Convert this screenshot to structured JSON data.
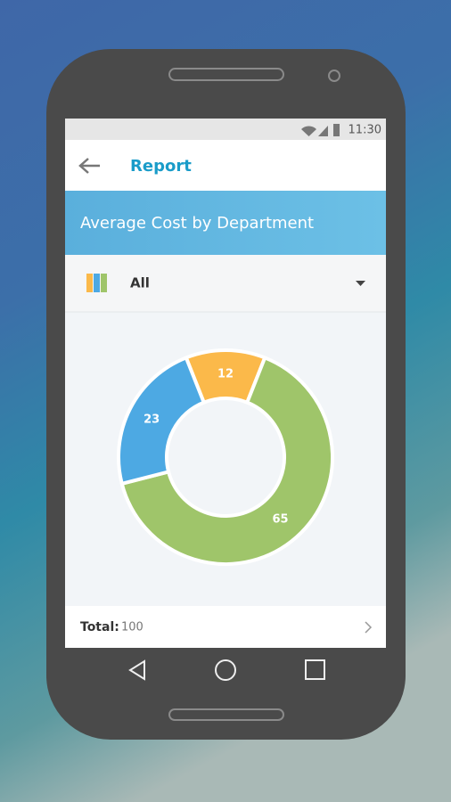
{
  "status_bar": {
    "time": "11:30"
  },
  "header": {
    "title": "Report"
  },
  "filter": {
    "label": "All"
  },
  "chart_data": {
    "type": "pie",
    "title": "Average Cost by Department",
    "values": [
      12,
      65,
      23
    ],
    "colors": [
      "#fbb94a",
      "#9fc56a",
      "#4da9e3"
    ]
  },
  "footer": {
    "total_label": "Total:",
    "total_value": "100"
  }
}
